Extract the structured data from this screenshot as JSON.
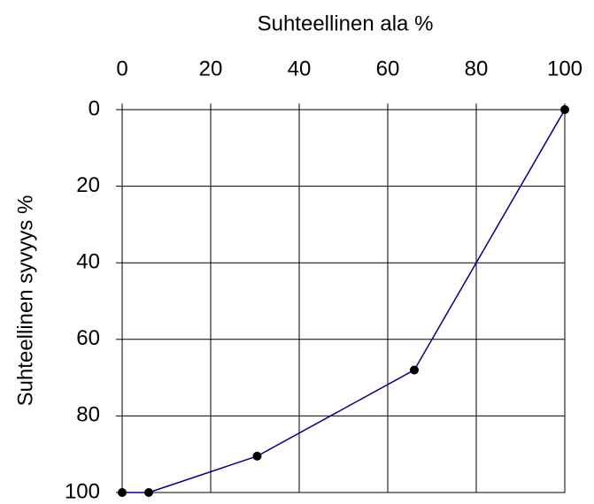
{
  "chart_data": {
    "type": "line",
    "x_label": "Suhteellinen ala %",
    "y_label": "Suhteellinen syvyys %",
    "x": [
      0,
      6,
      30.5,
      66,
      100
    ],
    "series": [
      {
        "color": "#000080",
        "marker_color": "#000000",
        "values": [
          100,
          100,
          90.5,
          68,
          0
        ]
      }
    ],
    "xlim": [
      0,
      100
    ],
    "xticks": [
      0,
      20,
      40,
      60,
      80,
      100
    ],
    "ylim": [
      100,
      0
    ],
    "yticks": [
      0,
      20,
      40,
      60,
      80,
      100
    ],
    "x_axis_position": "top",
    "grid": true
  }
}
